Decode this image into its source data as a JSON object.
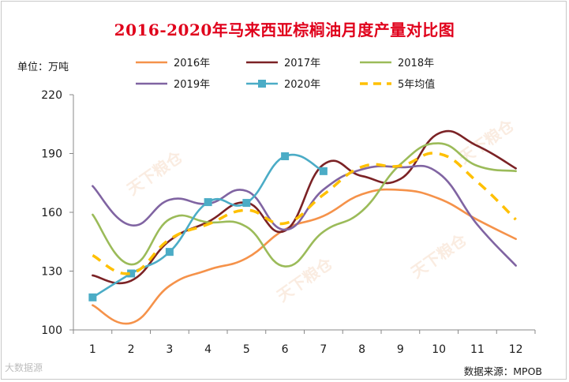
{
  "chart_data": {
    "type": "line",
    "title": "2016-2020年马来西亚棕榈油月度产量对比图",
    "unit_label": "单位：万吨",
    "source": "数据来源：MPOB",
    "corner_watermark": "大数据源",
    "plot_watermark": "天下粮仓",
    "categories": [
      "1",
      "2",
      "3",
      "4",
      "5",
      "6",
      "7",
      "8",
      "9",
      "10",
      "11",
      "12"
    ],
    "ylim": [
      100,
      220
    ],
    "yticks": [
      100,
      130,
      160,
      190,
      220
    ],
    "grid": false,
    "legend_position": "top",
    "series": [
      {
        "name": "2016年",
        "color": "#f5924a",
        "dashed": false,
        "marker": false,
        "values": [
          112.6,
          103.5,
          122.5,
          130.6,
          136.6,
          151.3,
          158.1,
          169.2,
          171.4,
          167.0,
          156.2,
          146.4
        ]
      },
      {
        "name": "2017年",
        "color": "#7b2225",
        "dashed": false,
        "marker": false,
        "values": [
          127.8,
          125.1,
          145.5,
          155.1,
          164.9,
          150.6,
          184.4,
          178.5,
          177.0,
          200.3,
          193.9,
          182.4
        ]
      },
      {
        "name": "2018年",
        "color": "#9bbb59",
        "dashed": false,
        "marker": false,
        "values": [
          158.8,
          133.4,
          156.5,
          154.9,
          152.6,
          132.4,
          150.1,
          160.6,
          184.5,
          195.2,
          183.7,
          181.0
        ]
      },
      {
        "name": "2019年",
        "color": "#8064a2",
        "dashed": false,
        "marker": false,
        "values": [
          173.4,
          153.4,
          166.4,
          164.4,
          170.9,
          151.1,
          171.6,
          181.9,
          183.0,
          179.9,
          153.7,
          132.8
        ]
      },
      {
        "name": "2020年",
        "color": "#4bacc6",
        "dashed": false,
        "marker": true,
        "values": [
          116.6,
          128.8,
          139.8,
          165.2,
          164.8,
          188.6,
          181.0,
          null,
          null,
          null,
          null,
          null
        ]
      },
      {
        "name": "5年均值",
        "color": "#ffc000",
        "dashed": true,
        "marker": false,
        "values": [
          138.0,
          128.9,
          146.2,
          153.9,
          161.1,
          154.4,
          169.0,
          183.2,
          183.7,
          189.9,
          175.5,
          156.3
        ]
      }
    ]
  }
}
